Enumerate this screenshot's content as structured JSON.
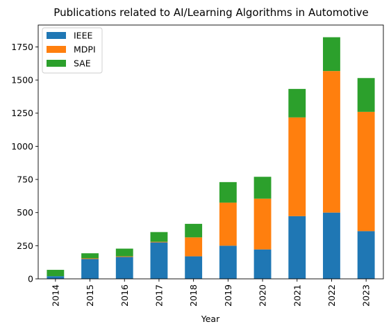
{
  "chart_data": {
    "type": "bar",
    "stacked": true,
    "title": "Publications related to AI/Learning Algorithms in Automotive",
    "xlabel": "Year",
    "ylabel": "",
    "categories": [
      "2014",
      "2015",
      "2016",
      "2017",
      "2018",
      "2019",
      "2020",
      "2021",
      "2022",
      "2023"
    ],
    "series": [
      {
        "name": "IEEE",
        "color": "#1f77b4",
        "values": [
          20,
          150,
          165,
          275,
          170,
          250,
          222,
          473,
          500,
          360
        ]
      },
      {
        "name": "MDPI",
        "color": "#ff7f0e",
        "values": [
          0,
          5,
          5,
          5,
          143,
          325,
          383,
          745,
          1068,
          900
        ]
      },
      {
        "name": "SAE",
        "color": "#2ca02c",
        "values": [
          48,
          38,
          58,
          73,
          102,
          155,
          165,
          215,
          255,
          255
        ]
      }
    ],
    "ylim": [
      0,
      1915
    ],
    "yticks": [
      0,
      250,
      500,
      750,
      1000,
      1250,
      1500,
      1750
    ],
    "grid": false,
    "legend": "top-left"
  }
}
